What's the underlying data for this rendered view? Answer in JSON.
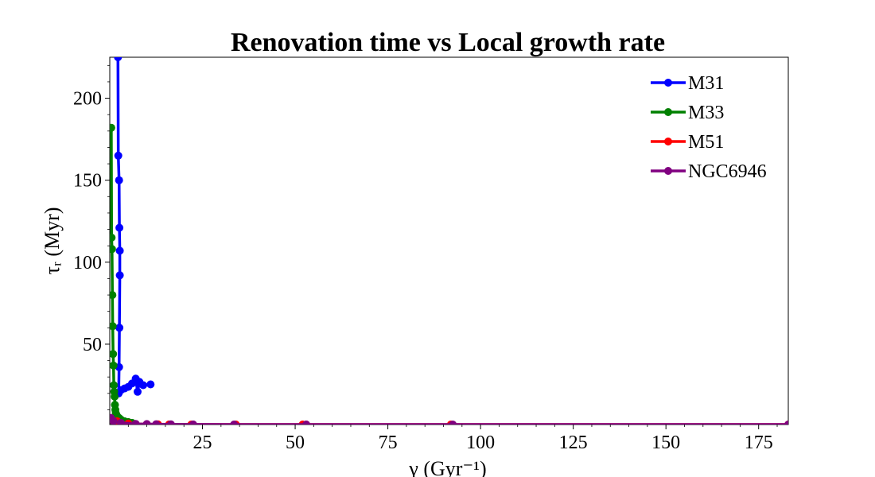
{
  "chart_data": {
    "type": "line",
    "title": "Renovation time vs Local growth rate",
    "xlabel": "γ (Gyr⁻¹)",
    "ylabel": "τᵣ (Myr)",
    "xlim": [
      0,
      183
    ],
    "ylim": [
      1,
      225
    ],
    "x_ticks": [
      25,
      50,
      75,
      100,
      125,
      150,
      175
    ],
    "y_ticks": [
      50,
      100,
      150,
      200
    ],
    "x_tick_labels": [
      "25",
      "50",
      "75",
      "100",
      "125",
      "150",
      "175"
    ],
    "y_tick_labels": [
      "50",
      "100",
      "150",
      "200"
    ],
    "grid": false,
    "legend_position": "top-right",
    "series": [
      {
        "name": "M31",
        "color": "#0000ff",
        "points": [
          [
            2.2,
            225
          ],
          [
            2.3,
            165
          ],
          [
            2.5,
            150
          ],
          [
            2.6,
            121
          ],
          [
            2.7,
            107
          ],
          [
            2.7,
            92
          ],
          [
            2.6,
            60
          ],
          [
            2.5,
            36
          ],
          [
            2.4,
            20
          ],
          [
            3,
            22
          ],
          [
            4,
            23
          ],
          [
            5,
            24
          ],
          [
            6,
            26
          ],
          [
            7,
            29
          ],
          [
            7.5,
            21
          ],
          [
            8,
            27
          ],
          [
            9,
            25
          ],
          [
            11,
            25.5
          ]
        ]
      },
      {
        "name": "M33",
        "color": "#008000",
        "points": [
          [
            0.4,
            182
          ],
          [
            0.5,
            115
          ],
          [
            0.6,
            108
          ],
          [
            0.7,
            80
          ],
          [
            0.8,
            61
          ],
          [
            0.9,
            44
          ],
          [
            1.0,
            37
          ],
          [
            1.1,
            25
          ],
          [
            1.2,
            21
          ],
          [
            1.3,
            18
          ],
          [
            1.4,
            13
          ],
          [
            1.5,
            10
          ],
          [
            1.6,
            8
          ],
          [
            1.8,
            7
          ],
          [
            2,
            6
          ],
          [
            2.5,
            5
          ],
          [
            3,
            4
          ],
          [
            4,
            3
          ],
          [
            5,
            2.5
          ],
          [
            6,
            2
          ]
        ]
      },
      {
        "name": "M51",
        "color": "#ff0000",
        "points": [
          [
            0.5,
            4
          ],
          [
            2,
            3
          ],
          [
            5,
            1.6
          ],
          [
            7,
            1.3
          ],
          [
            10,
            1.2
          ],
          [
            13,
            1.1
          ],
          [
            16,
            1.05
          ],
          [
            22,
            1.0
          ],
          [
            34,
            1.0
          ],
          [
            52,
            1.0
          ],
          [
            53,
            1.0
          ],
          [
            92,
            1.0
          ],
          [
            183,
            1.0
          ]
        ]
      },
      {
        "name": "NGC6946",
        "color": "#800080",
        "points": [
          [
            0.3,
            5
          ],
          [
            1,
            3
          ],
          [
            3,
            2
          ],
          [
            7,
            1.4
          ],
          [
            10,
            1.3
          ],
          [
            12.5,
            1.2
          ],
          [
            16.5,
            1.1
          ],
          [
            22.5,
            1.05
          ],
          [
            33.5,
            1.0
          ],
          [
            53,
            1.0
          ],
          [
            92.5,
            1.0
          ],
          [
            183,
            1.0
          ]
        ]
      }
    ]
  }
}
